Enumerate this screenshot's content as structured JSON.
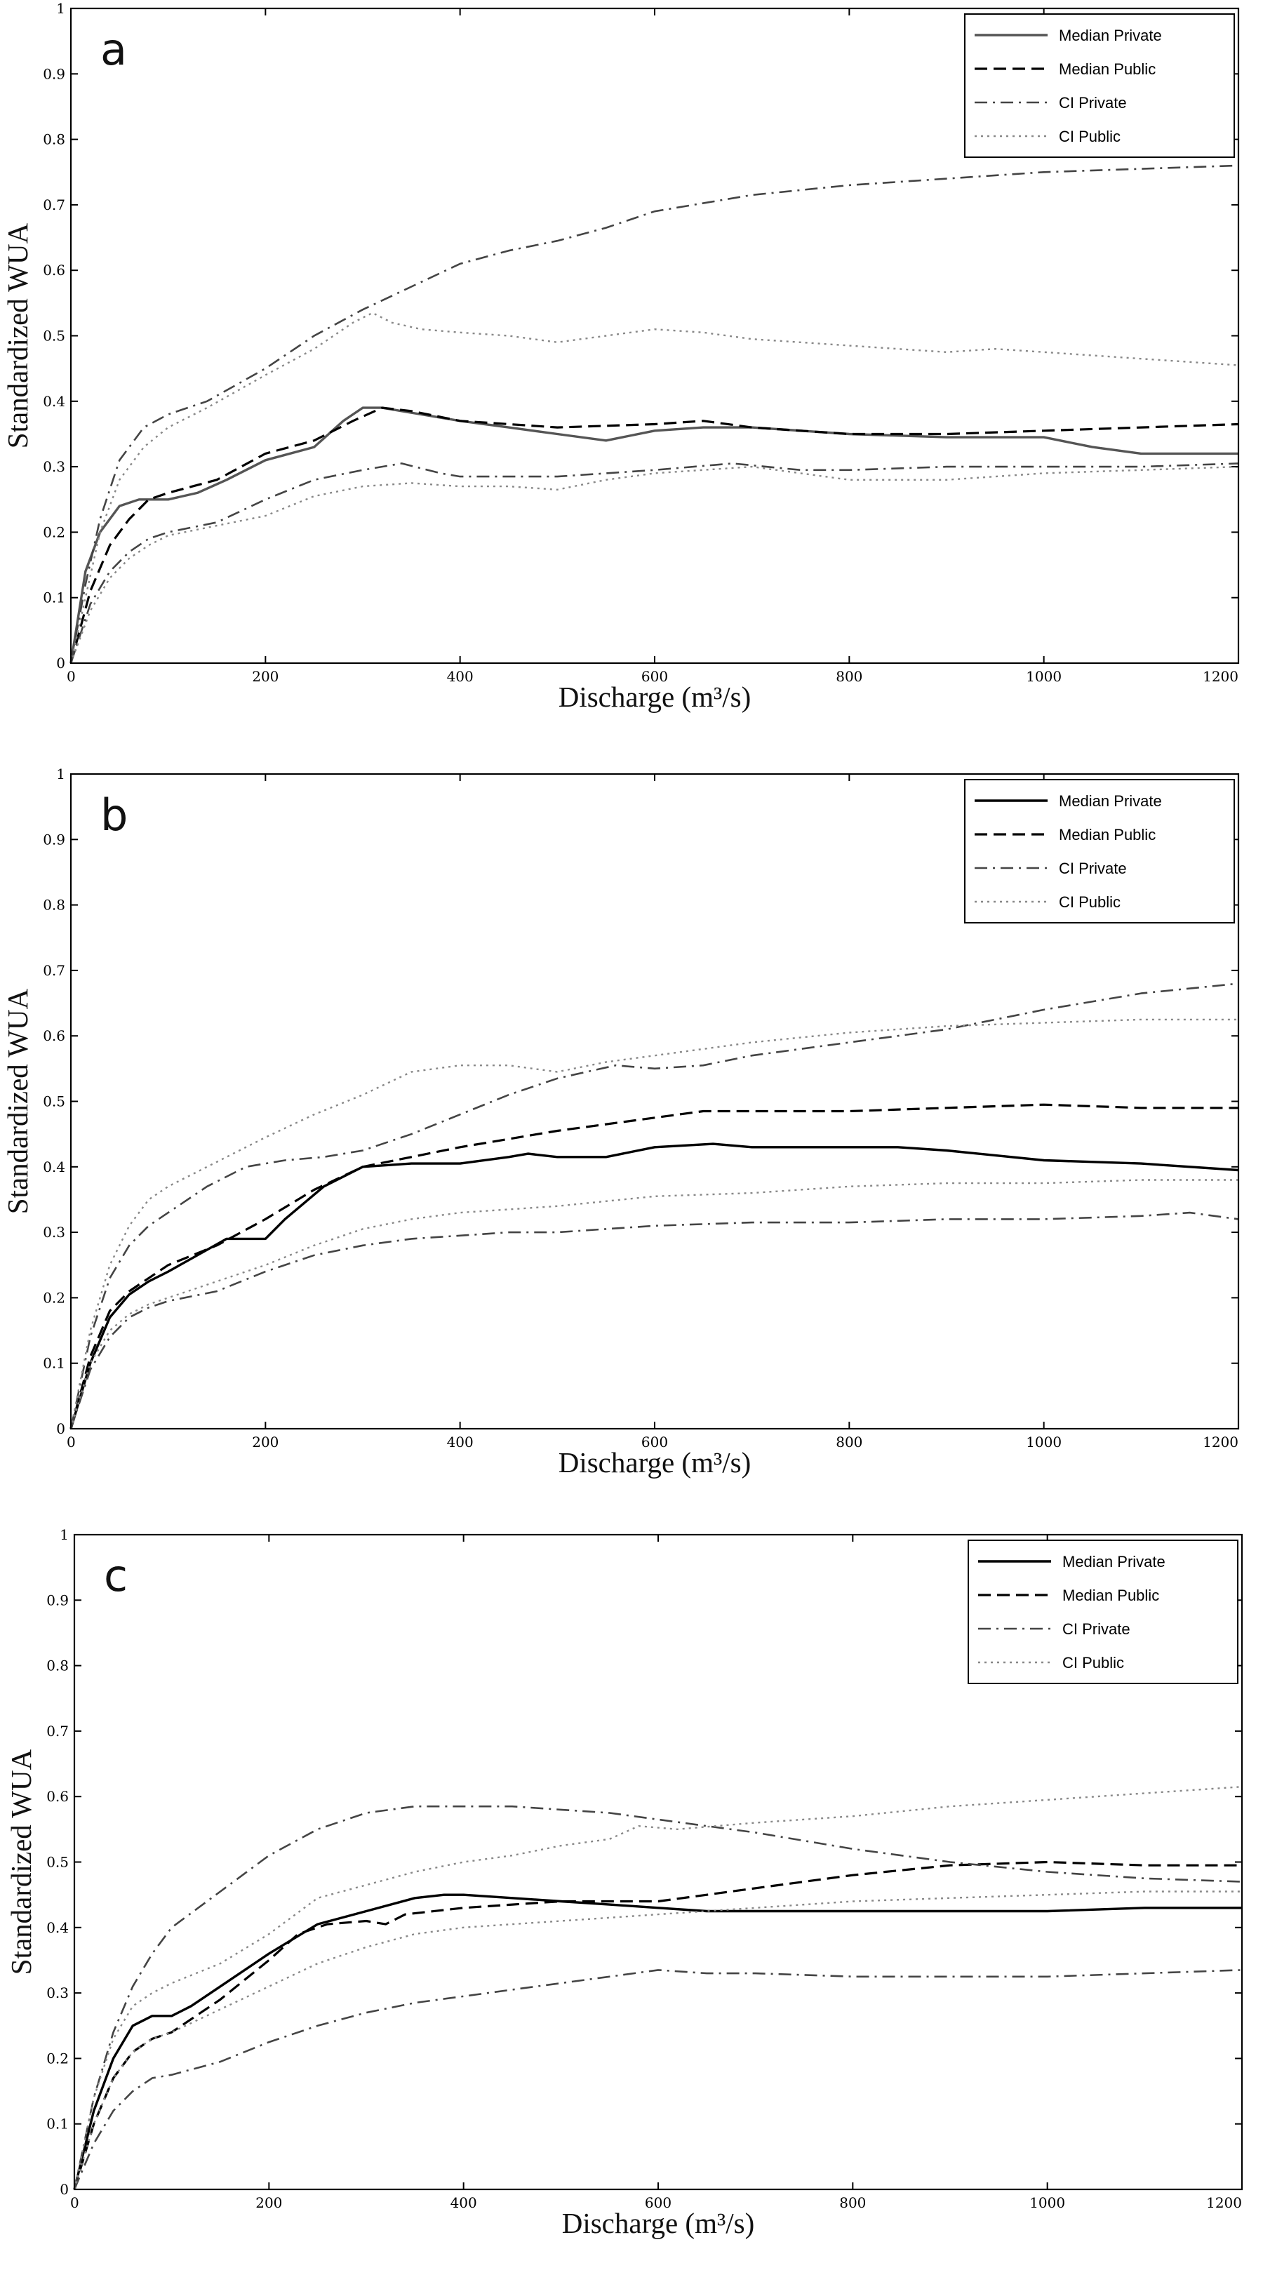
{
  "chart_data": [
    {
      "type": "line",
      "panel_label": "a",
      "xlabel": "Discharge (m³/s)",
      "ylabel": "Standardized WUA",
      "xlim": [
        0,
        1200
      ],
      "ylim": [
        0,
        1
      ],
      "xticks": [
        0,
        200,
        400,
        600,
        800,
        1000,
        1200
      ],
      "yticks": [
        0,
        0.1,
        0.2,
        0.3,
        0.4,
        0.5,
        0.6,
        0.7,
        0.8,
        0.9,
        1
      ],
      "legend_position": "top-right",
      "grid": false,
      "series": [
        {
          "name": "Median Private",
          "style": "solid",
          "color": "#555555",
          "x": [
            0,
            15,
            30,
            50,
            70,
            100,
            130,
            160,
            200,
            250,
            280,
            300,
            320,
            340,
            360,
            400,
            450,
            500,
            550,
            600,
            650,
            700,
            800,
            900,
            1000,
            1050,
            1100,
            1200
          ],
          "y": [
            0,
            0.14,
            0.2,
            0.24,
            0.25,
            0.25,
            0.26,
            0.28,
            0.31,
            0.33,
            0.37,
            0.39,
            0.39,
            0.385,
            0.38,
            0.37,
            0.36,
            0.35,
            0.34,
            0.355,
            0.36,
            0.36,
            0.35,
            0.345,
            0.345,
            0.33,
            0.32,
            0.32
          ]
        },
        {
          "name": "Median Public",
          "style": "dashed",
          "color": "#000000",
          "x": [
            0,
            20,
            40,
            60,
            80,
            100,
            150,
            200,
            250,
            290,
            320,
            350,
            400,
            500,
            600,
            650,
            700,
            800,
            900,
            1000,
            1100,
            1200
          ],
          "y": [
            0,
            0.11,
            0.18,
            0.22,
            0.25,
            0.26,
            0.28,
            0.32,
            0.34,
            0.37,
            0.39,
            0.385,
            0.37,
            0.36,
            0.365,
            0.37,
            0.36,
            0.35,
            0.35,
            0.355,
            0.36,
            0.365
          ]
        },
        {
          "name": "CI Private",
          "style": "dashdot",
          "color": "#444444",
          "x": [
            0,
            15,
            30,
            50,
            75,
            100,
            140,
            200,
            250,
            300,
            350,
            400,
            450,
            500,
            550,
            600,
            700,
            800,
            900,
            1000,
            1100,
            1200
          ],
          "y": [
            0,
            0.12,
            0.22,
            0.31,
            0.36,
            0.38,
            0.4,
            0.45,
            0.5,
            0.54,
            0.575,
            0.61,
            0.63,
            0.645,
            0.665,
            0.69,
            0.715,
            0.73,
            0.74,
            0.75,
            0.755,
            0.76
          ]
        },
        {
          "name": "CI Public",
          "style": "dotted",
          "color": "#888888",
          "x": [
            0,
            15,
            30,
            50,
            75,
            100,
            140,
            200,
            250,
            290,
            310,
            330,
            360,
            400,
            450,
            500,
            550,
            600,
            650,
            700,
            750,
            800,
            850,
            900,
            950,
            1000,
            1100,
            1200
          ],
          "y": [
            0,
            0.1,
            0.2,
            0.28,
            0.33,
            0.36,
            0.39,
            0.44,
            0.48,
            0.52,
            0.535,
            0.52,
            0.51,
            0.505,
            0.5,
            0.49,
            0.5,
            0.51,
            0.505,
            0.495,
            0.49,
            0.485,
            0.48,
            0.475,
            0.48,
            0.475,
            0.465,
            0.455
          ]
        },
        {
          "name": "",
          "style": "dashdot",
          "color": "#444444",
          "x": [
            0,
            20,
            40,
            60,
            80,
            100,
            150,
            200,
            250,
            300,
            340,
            380,
            400,
            500,
            600,
            680,
            750,
            800,
            900,
            1000,
            1100,
            1200
          ],
          "y": [
            0,
            0.09,
            0.14,
            0.17,
            0.19,
            0.2,
            0.215,
            0.25,
            0.28,
            0.295,
            0.305,
            0.29,
            0.285,
            0.285,
            0.295,
            0.305,
            0.295,
            0.295,
            0.3,
            0.3,
            0.3,
            0.305
          ]
        },
        {
          "name": "",
          "style": "dotted",
          "color": "#888888",
          "x": [
            0,
            20,
            40,
            60,
            80,
            100,
            150,
            200,
            250,
            300,
            350,
            400,
            450,
            500,
            550,
            600,
            700,
            750,
            800,
            900,
            1000,
            1100,
            1200
          ],
          "y": [
            0,
            0.08,
            0.13,
            0.16,
            0.18,
            0.195,
            0.21,
            0.225,
            0.255,
            0.27,
            0.275,
            0.27,
            0.27,
            0.265,
            0.28,
            0.29,
            0.3,
            0.29,
            0.28,
            0.28,
            0.29,
            0.295,
            0.3
          ]
        }
      ]
    },
    {
      "type": "line",
      "panel_label": "b",
      "xlabel": "Discharge (m³/s)",
      "ylabel": "Standardized WUA",
      "xlim": [
        0,
        1200
      ],
      "ylim": [
        0,
        1
      ],
      "xticks": [
        0,
        200,
        400,
        600,
        800,
        1000,
        1200
      ],
      "yticks": [
        0,
        0.1,
        0.2,
        0.3,
        0.4,
        0.5,
        0.6,
        0.7,
        0.8,
        0.9,
        1
      ],
      "legend_position": "top-right",
      "grid": false,
      "series": [
        {
          "name": "Median Private",
          "style": "solid",
          "color": "#000000",
          "x": [
            0,
            20,
            40,
            60,
            80,
            100,
            130,
            160,
            175,
            200,
            220,
            260,
            300,
            350,
            400,
            450,
            470,
            500,
            550,
            600,
            660,
            700,
            800,
            850,
            900,
            1000,
            1100,
            1200
          ],
          "y": [
            0,
            0.1,
            0.17,
            0.205,
            0.225,
            0.24,
            0.265,
            0.29,
            0.29,
            0.29,
            0.32,
            0.37,
            0.4,
            0.405,
            0.405,
            0.415,
            0.42,
            0.415,
            0.415,
            0.43,
            0.435,
            0.43,
            0.43,
            0.43,
            0.425,
            0.41,
            0.405,
            0.395
          ]
        },
        {
          "name": "Median Public",
          "style": "dashed",
          "color": "#000000",
          "x": [
            0,
            20,
            40,
            60,
            80,
            100,
            150,
            200,
            250,
            300,
            350,
            400,
            500,
            600,
            650,
            700,
            800,
            900,
            1000,
            1100,
            1200
          ],
          "y": [
            0,
            0.11,
            0.18,
            0.21,
            0.23,
            0.25,
            0.28,
            0.32,
            0.365,
            0.4,
            0.415,
            0.43,
            0.455,
            0.475,
            0.485,
            0.485,
            0.485,
            0.49,
            0.495,
            0.49,
            0.49
          ]
        },
        {
          "name": "CI Private",
          "style": "dashdot",
          "color": "#444444",
          "x": [
            0,
            20,
            40,
            60,
            80,
            100,
            140,
            180,
            220,
            260,
            300,
            350,
            400,
            450,
            500,
            560,
            600,
            650,
            700,
            800,
            900,
            1000,
            1100,
            1200
          ],
          "y": [
            0,
            0.14,
            0.23,
            0.28,
            0.31,
            0.33,
            0.37,
            0.4,
            0.41,
            0.415,
            0.425,
            0.45,
            0.48,
            0.51,
            0.535,
            0.555,
            0.55,
            0.555,
            0.57,
            0.59,
            0.61,
            0.64,
            0.665,
            0.68
          ]
        },
        {
          "name": "CI Public",
          "style": "dotted",
          "color": "#888888",
          "x": [
            0,
            20,
            40,
            60,
            80,
            100,
            140,
            200,
            250,
            300,
            350,
            400,
            450,
            500,
            550,
            600,
            700,
            800,
            900,
            1000,
            1100,
            1200
          ],
          "y": [
            0,
            0.15,
            0.25,
            0.31,
            0.35,
            0.37,
            0.4,
            0.445,
            0.48,
            0.51,
            0.545,
            0.555,
            0.555,
            0.545,
            0.56,
            0.57,
            0.59,
            0.605,
            0.615,
            0.62,
            0.625,
            0.625
          ]
        },
        {
          "name": "",
          "style": "dashdot",
          "color": "#444444",
          "x": [
            0,
            20,
            40,
            60,
            80,
            100,
            150,
            200,
            250,
            300,
            350,
            400,
            450,
            500,
            550,
            600,
            700,
            800,
            900,
            1000,
            1100,
            1150,
            1200
          ],
          "y": [
            0,
            0.09,
            0.14,
            0.17,
            0.185,
            0.195,
            0.21,
            0.24,
            0.265,
            0.28,
            0.29,
            0.295,
            0.3,
            0.3,
            0.305,
            0.31,
            0.315,
            0.315,
            0.32,
            0.32,
            0.325,
            0.33,
            0.32
          ]
        },
        {
          "name": "",
          "style": "dotted",
          "color": "#888888",
          "x": [
            0,
            20,
            40,
            60,
            80,
            100,
            150,
            200,
            250,
            300,
            350,
            400,
            500,
            600,
            700,
            800,
            900,
            1000,
            1100,
            1200
          ],
          "y": [
            0,
            0.1,
            0.15,
            0.175,
            0.19,
            0.2,
            0.225,
            0.25,
            0.28,
            0.305,
            0.32,
            0.33,
            0.34,
            0.355,
            0.36,
            0.37,
            0.375,
            0.375,
            0.38,
            0.38
          ]
        }
      ]
    },
    {
      "type": "line",
      "panel_label": "c",
      "xlabel": "Discharge (m³/s)",
      "ylabel": "Standardized WUA",
      "xlim": [
        0,
        1200
      ],
      "ylim": [
        0,
        1
      ],
      "xticks": [
        0,
        200,
        400,
        600,
        800,
        1000,
        1200
      ],
      "yticks": [
        0,
        0.1,
        0.2,
        0.3,
        0.4,
        0.5,
        0.6,
        0.7,
        0.8,
        0.9,
        1
      ],
      "legend_position": "top-right",
      "grid": false,
      "series": [
        {
          "name": "Median Private",
          "style": "solid",
          "color": "#000000",
          "x": [
            0,
            20,
            40,
            60,
            80,
            100,
            120,
            150,
            200,
            250,
            300,
            350,
            380,
            400,
            450,
            500,
            550,
            600,
            650,
            700,
            800,
            900,
            1000,
            1100,
            1200
          ],
          "y": [
            0,
            0.12,
            0.2,
            0.25,
            0.265,
            0.265,
            0.28,
            0.31,
            0.36,
            0.405,
            0.425,
            0.445,
            0.45,
            0.45,
            0.445,
            0.44,
            0.435,
            0.43,
            0.425,
            0.425,
            0.425,
            0.425,
            0.425,
            0.43,
            0.43
          ]
        },
        {
          "name": "Median Public",
          "style": "dashed",
          "color": "#000000",
          "x": [
            0,
            20,
            40,
            60,
            80,
            100,
            150,
            200,
            230,
            260,
            300,
            320,
            340,
            400,
            450,
            500,
            550,
            600,
            700,
            800,
            900,
            1000,
            1100,
            1200
          ],
          "y": [
            0,
            0.1,
            0.17,
            0.21,
            0.23,
            0.24,
            0.29,
            0.35,
            0.39,
            0.405,
            0.41,
            0.405,
            0.42,
            0.43,
            0.435,
            0.44,
            0.44,
            0.44,
            0.46,
            0.48,
            0.495,
            0.5,
            0.495,
            0.495
          ]
        },
        {
          "name": "CI Private",
          "style": "dashdot",
          "color": "#444444",
          "x": [
            0,
            20,
            40,
            60,
            80,
            100,
            150,
            200,
            250,
            300,
            350,
            400,
            450,
            500,
            550,
            600,
            650,
            700,
            800,
            900,
            1000,
            1100,
            1200
          ],
          "y": [
            0,
            0.14,
            0.24,
            0.31,
            0.36,
            0.4,
            0.455,
            0.51,
            0.55,
            0.575,
            0.585,
            0.585,
            0.585,
            0.58,
            0.575,
            0.565,
            0.555,
            0.545,
            0.52,
            0.5,
            0.485,
            0.475,
            0.47
          ]
        },
        {
          "name": "CI Public",
          "style": "dotted",
          "color": "#888888",
          "x": [
            0,
            20,
            40,
            60,
            80,
            100,
            150,
            200,
            250,
            300,
            350,
            400,
            450,
            500,
            550,
            580,
            620,
            700,
            800,
            900,
            1000,
            1100,
            1200
          ],
          "y": [
            0,
            0.14,
            0.23,
            0.28,
            0.3,
            0.315,
            0.345,
            0.39,
            0.445,
            0.465,
            0.485,
            0.5,
            0.51,
            0.525,
            0.535,
            0.555,
            0.55,
            0.56,
            0.57,
            0.585,
            0.595,
            0.605,
            0.615
          ]
        },
        {
          "name": "",
          "style": "dashdot",
          "color": "#444444",
          "x": [
            0,
            20,
            40,
            60,
            80,
            100,
            150,
            200,
            250,
            300,
            350,
            400,
            450,
            500,
            550,
            600,
            650,
            700,
            800,
            900,
            1000,
            1100,
            1200
          ],
          "y": [
            0,
            0.07,
            0.12,
            0.15,
            0.17,
            0.175,
            0.195,
            0.225,
            0.25,
            0.27,
            0.285,
            0.295,
            0.305,
            0.315,
            0.325,
            0.335,
            0.33,
            0.33,
            0.325,
            0.325,
            0.325,
            0.33,
            0.335
          ]
        },
        {
          "name": "",
          "style": "dotted",
          "color": "#888888",
          "x": [
            0,
            20,
            40,
            60,
            80,
            100,
            150,
            200,
            250,
            300,
            350,
            400,
            450,
            500,
            550,
            600,
            700,
            800,
            900,
            1000,
            1100,
            1200
          ],
          "y": [
            0,
            0.1,
            0.17,
            0.21,
            0.23,
            0.24,
            0.275,
            0.31,
            0.345,
            0.37,
            0.39,
            0.4,
            0.405,
            0.41,
            0.415,
            0.42,
            0.43,
            0.44,
            0.445,
            0.45,
            0.455,
            0.455
          ]
        }
      ]
    }
  ]
}
